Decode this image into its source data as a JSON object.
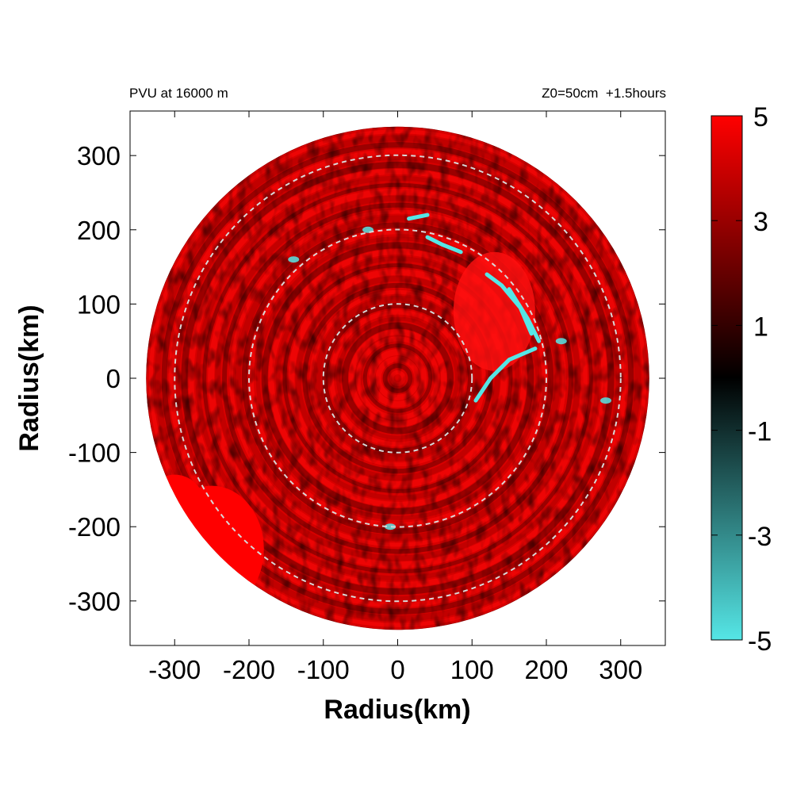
{
  "chart_data": {
    "type": "heatmap",
    "title_left": "PVU at 16000 m",
    "title_right": "Z0=50cm  +1.5hours",
    "xlabel": "Radius(km)",
    "ylabel": "Radius(km)",
    "xlim": [
      -360,
      360
    ],
    "ylim": [
      -360,
      360
    ],
    "xticks": [
      -300,
      -200,
      -100,
      0,
      100,
      200,
      300
    ],
    "yticks": [
      -300,
      -200,
      -100,
      0,
      100,
      200,
      300
    ],
    "domain_radius_km": 360,
    "range_rings_km": [
      100,
      200,
      300
    ],
    "colorbar": {
      "range": [
        -5,
        5
      ],
      "ticks": [
        5,
        3,
        1,
        -1,
        -3,
        -5
      ],
      "stops": [
        {
          "value": -5,
          "color": "#55e6e6"
        },
        {
          "value": 0,
          "color": "#000000"
        },
        {
          "value": 5,
          "color": "#ff0000"
        }
      ]
    },
    "features": [
      {
        "description": "predominantly positive PVU field (red, 2 to 5) across the domain"
      },
      {
        "description": "negative PVU cyan streaks near (130-200 km E, 0-150 km N)"
      },
      {
        "description": "saturated red patch in south-west near (-250, -230)"
      }
    ]
  }
}
